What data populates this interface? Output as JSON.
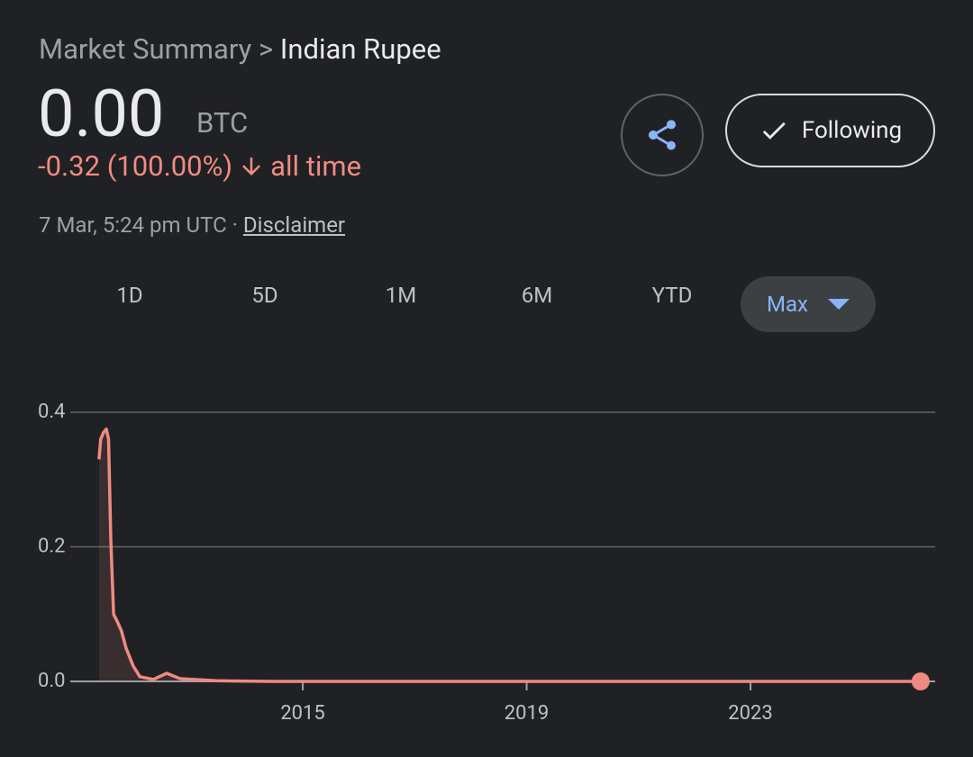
{
  "header": {
    "breadcrumb": "Market Summary",
    "separator": ">",
    "current": "Indian Rupee"
  },
  "quote": {
    "price": "0.00",
    "unit": "BTC",
    "change": "-0.32 (100.00%)",
    "period": "all time",
    "timestamp": "7 Mar, 5:24 pm UTC",
    "separator": "·",
    "disclaimer": "Disclaimer"
  },
  "buttons": {
    "following": "Following"
  },
  "ranges": [
    "1D",
    "5D",
    "1M",
    "6M",
    "YTD",
    "Max"
  ],
  "chart_data": {
    "type": "line",
    "color": "#ee8b80",
    "x": [
      2011.36,
      2011.39,
      2011.44,
      2011.49,
      2011.53,
      2011.57,
      2011.62,
      2011.68,
      2011.76,
      2011.84,
      2011.97,
      2012.09,
      2012.33,
      2012.57,
      2012.81,
      2013.45,
      2014.42,
      2026.04
    ],
    "values": [
      0.33,
      0.36,
      0.37,
      0.375,
      0.36,
      0.21,
      0.1,
      0.09,
      0.075,
      0.05,
      0.023,
      0.007,
      0.003,
      0.012,
      0.004,
      0.001,
      0,
      0
    ],
    "xlim": [
      2011.2,
      2026.1
    ],
    "xticks": [
      2015,
      2019,
      2023
    ],
    "ylim": [
      0,
      0.4
    ],
    "yticks": [
      0.4,
      0.2,
      {
        "value": 0,
        "label": "0.0"
      }
    ],
    "grid": true
  }
}
